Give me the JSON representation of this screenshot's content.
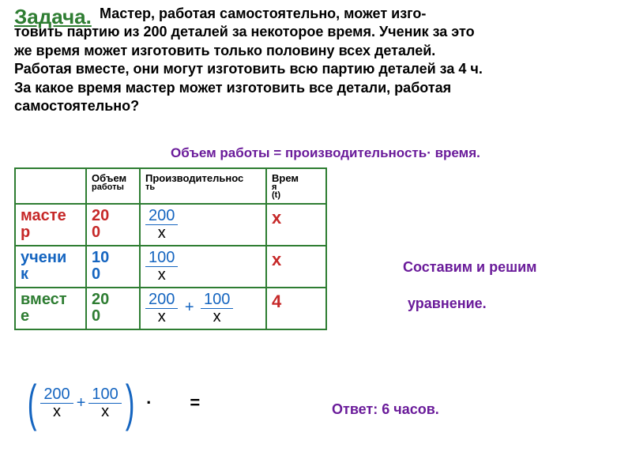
{
  "colors": {
    "c_title": "#2e7d32",
    "c_problem": "#000000",
    "c_formula": "#6a1b9a",
    "c_table_border": "#2e7d32",
    "c_header_text": "#000000",
    "c_master": "#c62828",
    "c_student": "#1565c0",
    "c_together": "#2e7d32",
    "c_frac_num": "#1565c0",
    "c_frac_den": "#000000",
    "c_time_x": "#c62828",
    "c_time_4": "#c62828",
    "c_setup": "#6a1b9a",
    "c_answer": "#6a1b9a",
    "c_eq": "#1565c0",
    "c_eq_ops": "#000000"
  },
  "title": "Задача.",
  "problem": {
    "l1": "Мастер, работая самостоятельно, может изго-",
    "l2": "товить партию из 200 деталей за некоторое время. Ученик за это",
    "l3": "же время может изготовить только половину всех деталей.",
    "l4": "Работая вместе, они могут изготовить всю партию деталей за 4 ч.",
    "l5": "За какое время мастер может изготовить все детали, работая",
    "l6": "самостоятельно?"
  },
  "formula": "Объем работы = производительность· время.",
  "table": {
    "headers": {
      "c1": "",
      "c2a": "Объем",
      "c2b": "работы",
      "c3a": "Производительнос",
      "c3b": "ть",
      "c4a": "Врем",
      "c4b": "я",
      "c4c": "(t)"
    },
    "rows": {
      "master": {
        "label_a": "масте",
        "label_b": "р",
        "vol_a": "20",
        "vol_b": "0",
        "prod_num": "200",
        "prod_den": "x",
        "time": "x"
      },
      "student": {
        "label_a": "учени",
        "label_b": "к",
        "vol_a": "10",
        "vol_b": "0",
        "prod_num": "100",
        "prod_den": "x",
        "time": "x"
      },
      "together": {
        "label_a": "вмест",
        "label_b": "е",
        "vol_a": "20",
        "vol_b": "0",
        "p1_num": "200",
        "p1_den": "x",
        "plus": "+",
        "p2_num": "100",
        "p2_den": "x",
        "time": "4"
      }
    }
  },
  "setup1": "Составим и решим",
  "setup2": "уравнение.",
  "eq": {
    "f1_num": "200",
    "f1_den": "x",
    "plus": "+",
    "f2_num": "100",
    "f2_den": "x",
    "dot": "·",
    "equals": "="
  },
  "answer": "Ответ: 6 часов."
}
